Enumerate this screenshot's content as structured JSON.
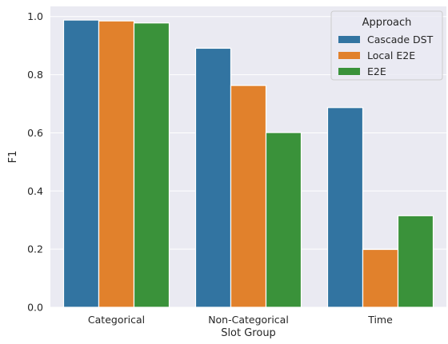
{
  "chart_data": {
    "type": "bar",
    "xlabel": "Slot Group",
    "ylabel": "F1",
    "ylim": [
      0,
      1.035
    ],
    "yticks": [
      0.0,
      0.2,
      0.4,
      0.6,
      0.8,
      1.0
    ],
    "ytick_labels": [
      "0.0",
      "0.2",
      "0.4",
      "0.6",
      "0.8",
      "1.0"
    ],
    "grid": true,
    "categories": [
      "Categorical",
      "Non-Categorical",
      "Time"
    ],
    "legend": {
      "title": "Approach",
      "placement": "top-right"
    },
    "series": [
      {
        "name": "Cascade DST",
        "color": "#3274a1",
        "values": [
          0.988,
          0.891,
          0.687
        ]
      },
      {
        "name": "Local E2E",
        "color": "#e1812c",
        "values": [
          0.985,
          0.763,
          0.199
        ]
      },
      {
        "name": "E2E",
        "color": "#3a923a",
        "values": [
          0.978,
          0.601,
          0.315
        ]
      }
    ],
    "plot_background": "#eaeaf2",
    "grid_color": "#ffffff"
  }
}
